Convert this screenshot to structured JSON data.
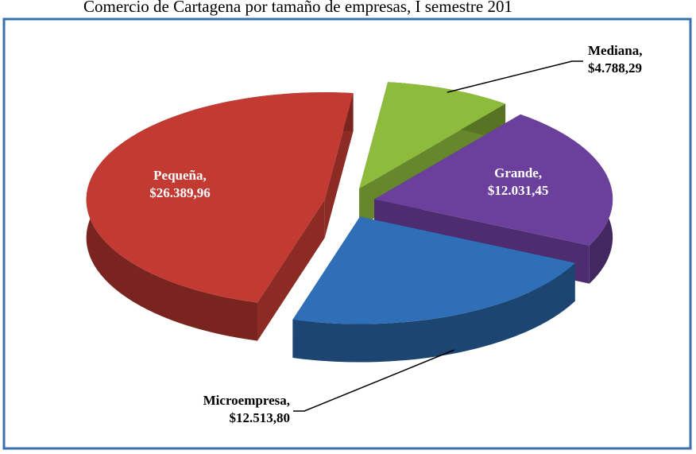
{
  "chart_data": {
    "type": "pie3d",
    "title": "Comercio de Cartagena por tamaño de empresas, I semestre 201",
    "categories": [
      "Mediana,",
      "Grande,",
      "Microempresa,",
      "Pequeña,"
    ],
    "values": [
      4788.29,
      12031.45,
      12513.8,
      26389.96
    ],
    "value_labels": [
      "$4.788,29",
      "$12.031,45",
      "$12.513,80",
      "$26.389,96"
    ],
    "colors": [
      "#8dbb3c",
      "#6b3f9c",
      "#2f6fb8",
      "#c33a32"
    ]
  }
}
